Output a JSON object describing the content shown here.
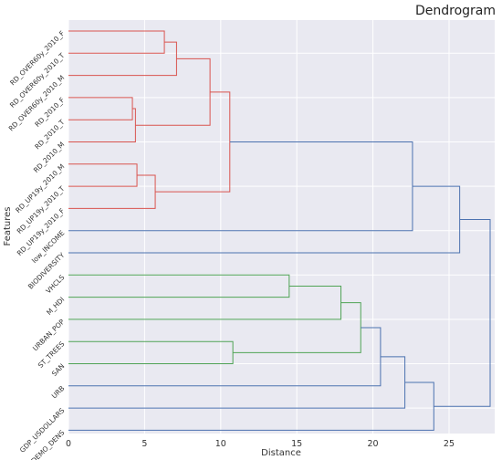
{
  "chart_data": {
    "type": "dendrogram",
    "title": "Dendrogram",
    "xlabel": "Distance",
    "ylabel": "Features",
    "xlim": [
      0,
      28
    ],
    "xticks": [
      0,
      5,
      10,
      15,
      20,
      25
    ],
    "grid": true,
    "orientation": "right",
    "leaves": [
      "RD_OVER60y_2010_F",
      "RD_OVER60y_2010_T",
      "RD_OVER60y_2010_M",
      "RD_2010_F",
      "RD_2010_T",
      "RD_2010_M",
      "RD_UP19y_2010_M",
      "RD_UP19y_2010_T",
      "RD_UP19y_2010_F",
      "low_INCOME",
      "BIODIVERSITY",
      "VHCLS",
      "M_HDI",
      "URBAN_POP",
      "ST_TREES",
      "SAN",
      "URB",
      "GDP_USDOLLARS",
      "DEMO_DENS"
    ],
    "colors": {
      "cluster1": "#d9544f",
      "cluster2": "#4fa355",
      "above": "#4c72b0"
    },
    "merges": [
      {
        "id": "A",
        "a": 0,
        "b": 1,
        "height": 6.3,
        "color": "cluster1"
      },
      {
        "id": "B",
        "a": "A",
        "b": 2,
        "height": 7.1,
        "color": "cluster1"
      },
      {
        "id": "C",
        "a": 3,
        "b": 4,
        "height": 4.2,
        "color": "cluster1"
      },
      {
        "id": "D",
        "a": "C",
        "b": 5,
        "height": 4.4,
        "color": "cluster1"
      },
      {
        "id": "E",
        "a": "B",
        "b": "D",
        "height": 9.3,
        "color": "cluster1"
      },
      {
        "id": "F",
        "a": 6,
        "b": 7,
        "height": 4.5,
        "color": "cluster1"
      },
      {
        "id": "G",
        "a": "F",
        "b": 8,
        "height": 5.7,
        "color": "cluster1"
      },
      {
        "id": "H",
        "a": "E",
        "b": "G",
        "height": 10.6,
        "color": "cluster1"
      },
      {
        "id": "I",
        "a": "H",
        "b": 9,
        "height": 22.6,
        "color": "above"
      },
      {
        "id": "J",
        "a": "I",
        "b": 10,
        "height": 25.7,
        "color": "above"
      },
      {
        "id": "K",
        "a": 11,
        "b": 12,
        "height": 14.5,
        "color": "cluster2"
      },
      {
        "id": "L",
        "a": "K",
        "b": 13,
        "height": 17.9,
        "color": "cluster2"
      },
      {
        "id": "M",
        "a": 14,
        "b": 15,
        "height": 10.8,
        "color": "cluster2"
      },
      {
        "id": "N",
        "a": "L",
        "b": "M",
        "height": 19.2,
        "color": "cluster2"
      },
      {
        "id": "O",
        "a": "N",
        "b": 16,
        "height": 20.5,
        "color": "above"
      },
      {
        "id": "P",
        "a": "O",
        "b": 17,
        "height": 22.1,
        "color": "above"
      },
      {
        "id": "Q",
        "a": "P",
        "b": 18,
        "height": 24.0,
        "color": "above"
      },
      {
        "id": "R",
        "a": "J",
        "b": "Q",
        "height": 27.7,
        "color": "above"
      }
    ]
  }
}
